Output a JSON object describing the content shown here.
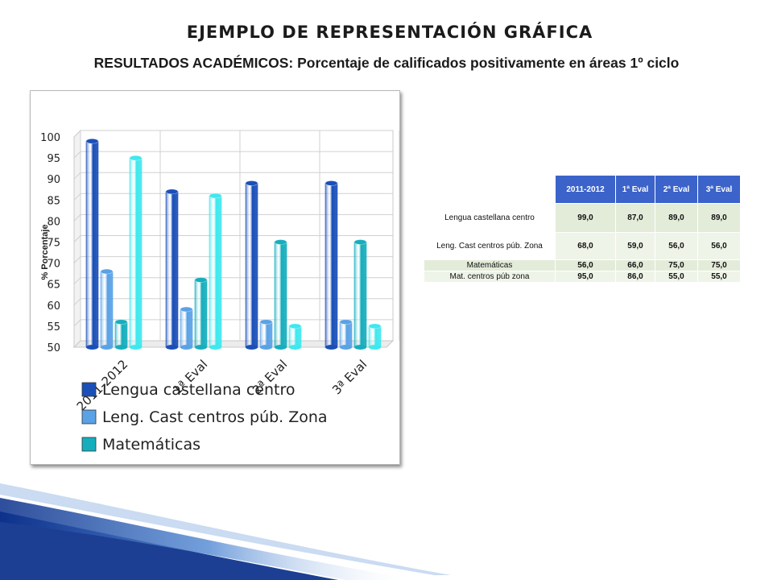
{
  "slide": {
    "title": "EJEMPLO DE REPRESENTACIÓN GRÁFICA",
    "subtitle": "RESULTADOS ACADÉMICOS: Porcentaje de calificados positivamente en áreas 1º ciclo"
  },
  "colors": {
    "series": [
      "#1a4fb8",
      "#5aa2e6",
      "#16aebd",
      "#3ee8ee"
    ],
    "table_header": "#3b63c9",
    "swoosh_dark": "#0a2f8a",
    "swoosh_light": "#5b8fd6"
  },
  "chart_data": {
    "type": "bar",
    "style": "3d-cylinder",
    "ylabel": "% Porcentaje",
    "ylim": [
      50,
      100
    ],
    "yticks": [
      100,
      95,
      90,
      85,
      80,
      75,
      70,
      65,
      60,
      55,
      50
    ],
    "grid": true,
    "category_labels": [
      "2011-2012",
      "1ª Eval",
      "2ª Eval",
      "3ª Eval"
    ],
    "series": [
      {
        "name": "Lengua castellana centro",
        "values": [
          99,
          87,
          89,
          89
        ]
      },
      {
        "name": "Leng. Cast centros púb. Zona",
        "values": [
          68,
          59,
          56,
          56
        ]
      },
      {
        "name": "Matemáticas",
        "values": [
          56,
          66,
          75,
          75
        ]
      },
      {
        "name": "Mat. centros púb zona",
        "values": [
          95,
          86,
          55,
          55
        ]
      }
    ],
    "legend_visible": [
      "Lengua castellana centro",
      "Leng. Cast centros púb. Zona",
      "Matemáticas"
    ],
    "legend_position": "bottom"
  },
  "table": {
    "header": [
      "",
      "2011-2012",
      "1ª Eval",
      "2ª Eval",
      "3ª Eval"
    ],
    "rows": [
      {
        "label": "Lengua castellana centro",
        "values": [
          "99,0",
          "87,0",
          "89,0",
          "89,0"
        ]
      },
      {
        "label": "Leng. Cast centros púb. Zona",
        "values": [
          "68,0",
          "59,0",
          "56,0",
          "56,0"
        ]
      },
      {
        "label": "Matemáticas",
        "values": [
          "56,0",
          "66,0",
          "75,0",
          "75,0"
        ]
      },
      {
        "label": "Mat. centros púb zona",
        "values": [
          "95,0",
          "86,0",
          "55,0",
          "55,0"
        ]
      }
    ]
  }
}
